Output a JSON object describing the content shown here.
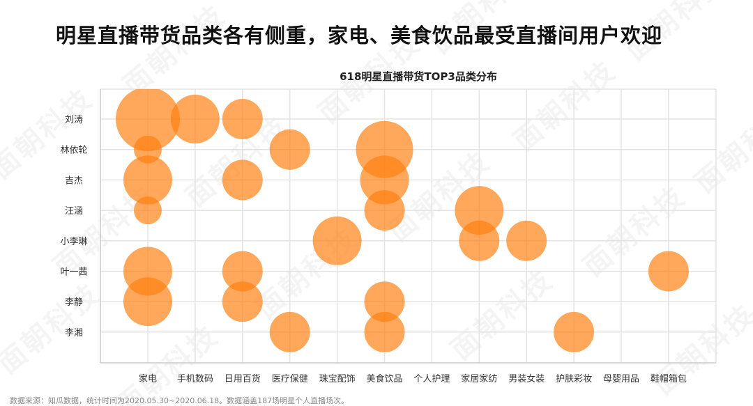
{
  "header": {
    "title": "明星直播带货品类各有侧重，家电、美食饮品最受直播间用户欢迎"
  },
  "watermark": "面朝科技",
  "footer": {
    "source": "数据来源：知瓜数据，统计时间为2020.05.30~2020.06.18。数据涵盖187场明星个人直播场次。"
  },
  "chart_data": {
    "type": "scatter",
    "subtype": "bubble",
    "title": "618明星直播带货TOP3品类分布",
    "xlabel": "",
    "ylabel": "",
    "grid": true,
    "legend": null,
    "bubble_color": "#ff7f0e",
    "bubble_opacity": 0.68,
    "x_categories": [
      "家电",
      "手机数码",
      "日用百货",
      "医疗保健",
      "珠宝配饰",
      "美食饮品",
      "个人护理",
      "家居家纺",
      "男装女装",
      "护肤彩妆",
      "母婴用品",
      "鞋帽箱包"
    ],
    "y_categories": [
      "刘涛",
      "林依轮",
      "吉杰",
      "汪涵",
      "小李琳",
      "叶一茜",
      "李静",
      "李湘"
    ],
    "points": [
      {
        "star": "刘涛",
        "category": "家电",
        "size": 46
      },
      {
        "star": "刘涛",
        "category": "手机数码",
        "size": 35
      },
      {
        "star": "刘涛",
        "category": "日用百货",
        "size": 29
      },
      {
        "star": "林依轮",
        "category": "家电",
        "size": 20
      },
      {
        "star": "林依轮",
        "category": "医疗保健",
        "size": 29
      },
      {
        "star": "林依轮",
        "category": "美食饮品",
        "size": 41
      },
      {
        "star": "吉杰",
        "category": "家电",
        "size": 35
      },
      {
        "star": "吉杰",
        "category": "日用百货",
        "size": 29
      },
      {
        "star": "吉杰",
        "category": "美食饮品",
        "size": 35
      },
      {
        "star": "汪涵",
        "category": "家电",
        "size": 20
      },
      {
        "star": "汪涵",
        "category": "美食饮品",
        "size": 29
      },
      {
        "star": "汪涵",
        "category": "家居家纺",
        "size": 35
      },
      {
        "star": "小李琳",
        "category": "珠宝配饰",
        "size": 35
      },
      {
        "star": "小李琳",
        "category": "家居家纺",
        "size": 29
      },
      {
        "star": "小李琳",
        "category": "男装女装",
        "size": 29
      },
      {
        "star": "叶一茜",
        "category": "家电",
        "size": 35
      },
      {
        "star": "叶一茜",
        "category": "日用百货",
        "size": 29
      },
      {
        "star": "叶一茜",
        "category": "鞋帽箱包",
        "size": 29
      },
      {
        "star": "李静",
        "category": "家电",
        "size": 35
      },
      {
        "star": "李静",
        "category": "日用百货",
        "size": 29
      },
      {
        "star": "李静",
        "category": "美食饮品",
        "size": 29
      },
      {
        "star": "李湘",
        "category": "医疗保健",
        "size": 29
      },
      {
        "star": "李湘",
        "category": "美食饮品",
        "size": 29
      },
      {
        "star": "李湘",
        "category": "护肤彩妆",
        "size": 29
      }
    ]
  }
}
